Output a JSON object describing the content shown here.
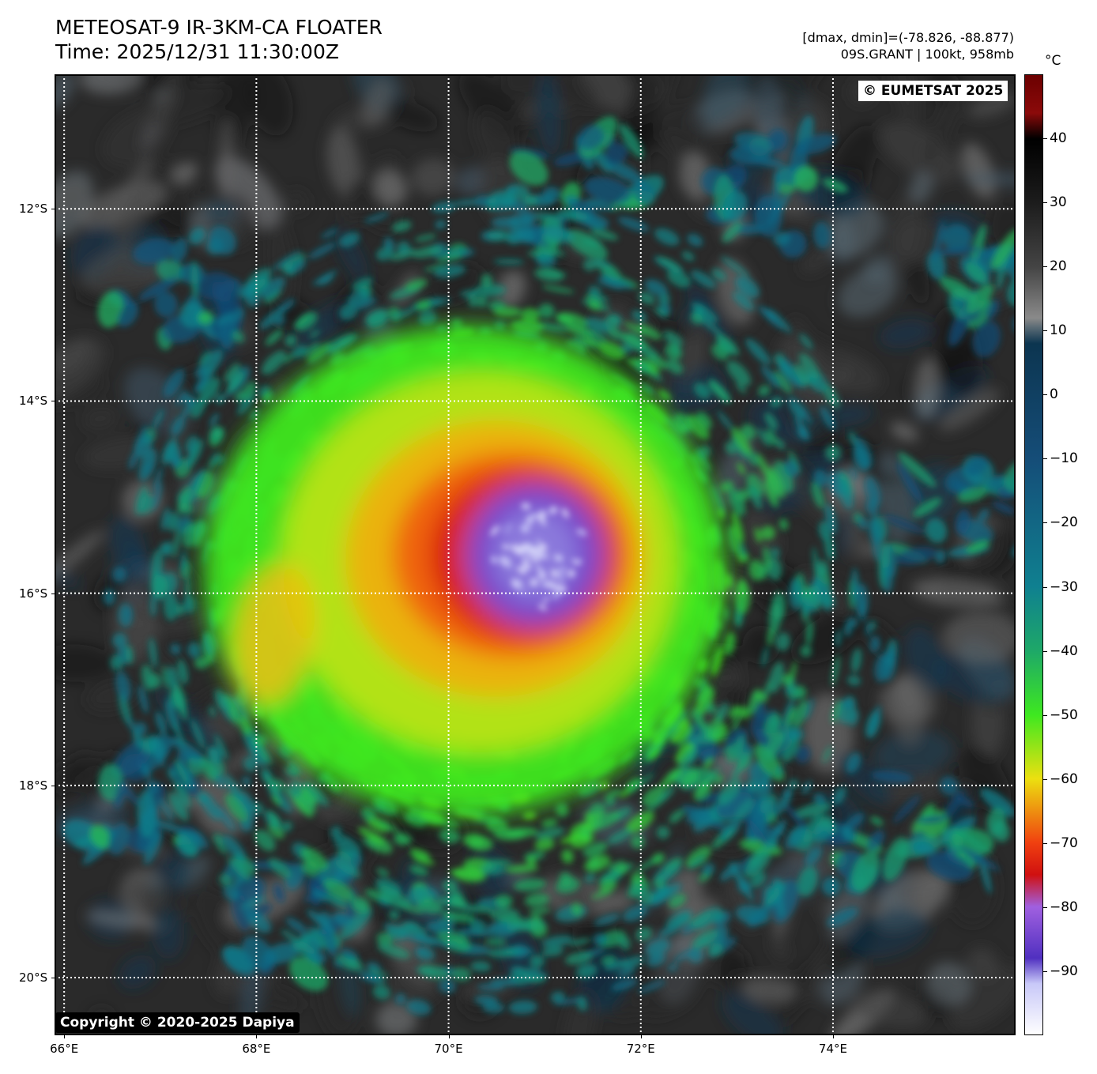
{
  "header": {
    "title_line1": "METEOSAT-9 IR-3KM-CA FLOATER",
    "title_line2": "Time: 2025/12/31 11:30:00Z",
    "info_line1": "[dmax, dmin]=(-78.826, -88.877)",
    "info_line2": "09S.GRANT | 100kt, 958mb"
  },
  "map": {
    "credit": "© EUMETSAT 2025",
    "copyright": "Copyright © 2020-2025 Dapiya",
    "lat_labels": [
      "12°S",
      "14°S",
      "16°S",
      "18°S",
      "20°S"
    ],
    "lon_labels": [
      "66°E",
      "68°E",
      "70°E",
      "72°E",
      "74°E"
    ],
    "lat_values": [
      -12,
      -14,
      -16,
      -18,
      -20
    ],
    "lon_values": [
      66,
      68,
      70,
      72,
      74
    ],
    "lat_range": [
      -20.6,
      -10.6
    ],
    "lon_range": [
      65.9,
      75.9
    ],
    "storm_center_lon": 70.9,
    "storm_center_lat": -15.6
  },
  "colorbar": {
    "unit": "°C",
    "tick_labels": [
      "40",
      "30",
      "20",
      "10",
      "0",
      "−10",
      "−20",
      "−30",
      "−40",
      "−50",
      "−60",
      "−70",
      "−80",
      "−90"
    ],
    "tick_values": [
      40,
      30,
      20,
      10,
      0,
      -10,
      -20,
      -30,
      -40,
      -50,
      -60,
      -70,
      -80,
      -90
    ],
    "range": [
      -100,
      50
    ],
    "stops": [
      {
        "t": 50,
        "color": "#6b0000"
      },
      {
        "t": 44,
        "color": "#8b0a0a"
      },
      {
        "t": 40,
        "color": "#000000"
      },
      {
        "t": 30,
        "color": "#1c1c1c"
      },
      {
        "t": 20,
        "color": "#444444"
      },
      {
        "t": 12,
        "color": "#8a8a8a"
      },
      {
        "t": 8,
        "color": "#0c3550"
      },
      {
        "t": -10,
        "color": "#154d78"
      },
      {
        "t": -30,
        "color": "#0f8090"
      },
      {
        "t": -40,
        "color": "#1ea868"
      },
      {
        "t": -50,
        "color": "#3ee820"
      },
      {
        "t": -60,
        "color": "#ece010"
      },
      {
        "t": -70,
        "color": "#f04010"
      },
      {
        "t": -75,
        "color": "#d01010"
      },
      {
        "t": -80,
        "color": "#a060e0"
      },
      {
        "t": -88,
        "color": "#5030c0"
      },
      {
        "t": -92,
        "color": "#c8c8f8"
      },
      {
        "t": -100,
        "color": "#ffffff"
      }
    ]
  }
}
